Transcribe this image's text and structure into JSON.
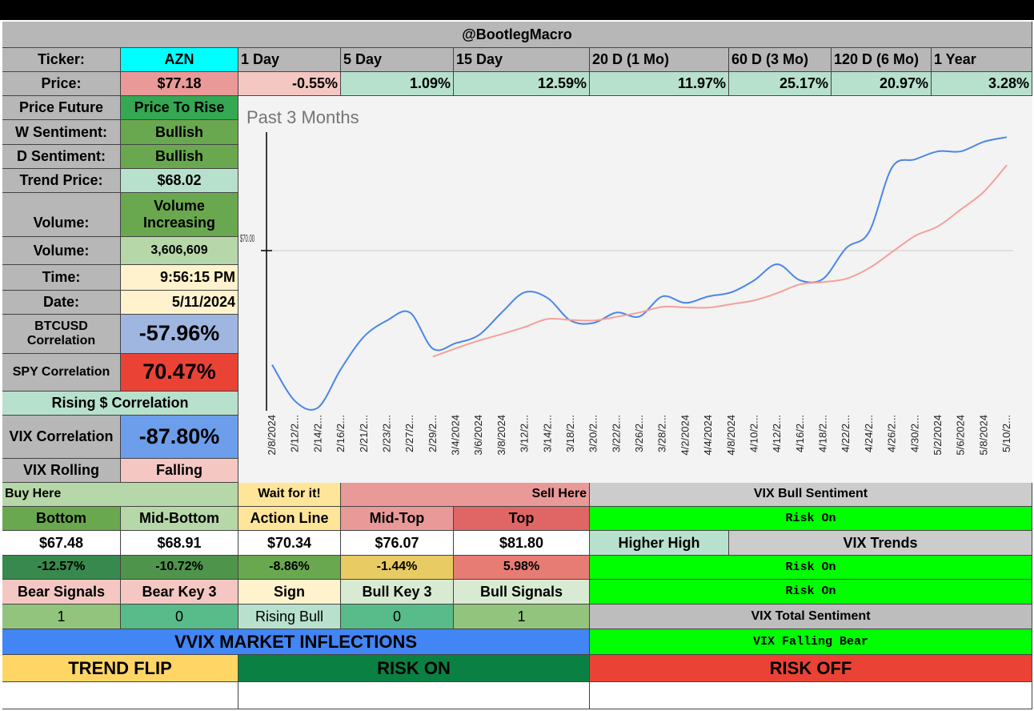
{
  "header": {
    "title": "@BootlegMacro"
  },
  "ticker": {
    "label": "Ticker:",
    "value": "AZN"
  },
  "price": {
    "label": "Price:",
    "value": "$77.18"
  },
  "periods": [
    {
      "label": "1 Day",
      "change": "-0.55%"
    },
    {
      "label": "5 Day",
      "change": "1.09%"
    },
    {
      "label": "15 Day",
      "change": "12.59%"
    },
    {
      "label": "20 D (1 Mo)",
      "change": "11.97%"
    },
    {
      "label": "60 D (3 Mo)",
      "change": "25.17%"
    },
    {
      "label": "120 D (6 Mo)",
      "change": "20.97%"
    },
    {
      "label": "1 Year",
      "change": "3.28%"
    }
  ],
  "left_panel": {
    "price_future": {
      "label": "Price Future",
      "value": "Price To Rise"
    },
    "w_sentiment": {
      "label": "W Sentiment:",
      "value": "Bullish"
    },
    "d_sentiment": {
      "label": "D Sentiment:",
      "value": "Bullish"
    },
    "trend_price": {
      "label": "Trend Price:",
      "value": "$68.02"
    },
    "volume_trend": {
      "label": "Volume:",
      "value": "Volume Increasing"
    },
    "volume": {
      "label": "Volume:",
      "value": "3,606,609"
    },
    "time": {
      "label": "Time:",
      "value": "9:56:15 PM"
    },
    "date": {
      "label": "Date:",
      "value": "5/11/2024"
    },
    "btc_corr": {
      "label": "BTCUSD Correlation",
      "value": "-57.96%"
    },
    "spy_corr": {
      "label": "SPY Correlation",
      "value": "70.47%"
    },
    "rising_corr": {
      "label": "Rising $ Correlation"
    },
    "vix_corr": {
      "label": "VIX Correlation",
      "value": "-87.80%"
    },
    "vix_rolling": {
      "label": "VIX Rolling",
      "value": "Falling"
    }
  },
  "chart_data": {
    "type": "line",
    "title": "Past 3 Months",
    "ytick_label": "$70.00",
    "ylim": [
      60,
      77.5
    ],
    "x": [
      "2/8/2024",
      "2/12/2...",
      "2/14/2...",
      "2/16/2...",
      "2/21/2...",
      "2/23/2...",
      "2/27/2...",
      "2/29/2...",
      "3/4/2024",
      "3/6/2024",
      "3/8/2024",
      "3/12/2...",
      "3/14/2...",
      "3/18/2...",
      "3/20/2...",
      "3/22/2...",
      "3/26/2...",
      "3/28/2...",
      "4/2/2024",
      "4/4/2024",
      "4/8/2024",
      "4/10/2...",
      "4/12/2...",
      "4/16/2...",
      "4/18/2...",
      "4/22/2...",
      "4/24/2...",
      "4/26/2...",
      "4/30/2...",
      "5/2/2024",
      "5/6/2024",
      "5/8/2024",
      "5/10/2..."
    ],
    "series": [
      {
        "color": "#4a86e8",
        "values": [
          62.76,
          60.46,
          60.05,
          62.5,
          64.54,
          65.56,
          66.07,
          63.78,
          64.13,
          64.64,
          66.07,
          67.35,
          66.99,
          65.56,
          65.41,
          66.07,
          65.82,
          67.09,
          66.68,
          67.09,
          67.35,
          68.11,
          69.13,
          68.11,
          68.21,
          70.15,
          71.17,
          75.26,
          75.77,
          76.28,
          76.28,
          76.89,
          77.18
        ]
      },
      {
        "color": "#f4a09a",
        "values": [
          null,
          null,
          null,
          null,
          null,
          null,
          null,
          63.27,
          63.8,
          64.29,
          64.7,
          65.15,
          65.66,
          65.6,
          65.56,
          65.8,
          66.07,
          66.43,
          66.4,
          66.38,
          66.6,
          66.84,
          67.3,
          67.86,
          68.0,
          68.21,
          68.88,
          69.9,
          70.92,
          71.53,
          72.6,
          73.72,
          75.41
        ]
      }
    ],
    "grid": false
  },
  "levels": {
    "buy_here": "Buy Here",
    "wait": "Wait for it!",
    "sell_here": "Sell Here",
    "headers": [
      "Bottom",
      "Mid-Bottom",
      "Action Line",
      "Mid-Top",
      "Top"
    ],
    "prices": [
      "$67.48",
      "$68.91",
      "$70.34",
      "$76.07",
      "$81.80"
    ],
    "pcts": [
      "-12.57%",
      "-10.72%",
      "-8.86%",
      "-1.44%",
      "5.98%"
    ],
    "signal_headers": [
      "Bear Signals",
      "Bear Key 3",
      "Sign",
      "Bull Key 3",
      "Bull Signals"
    ],
    "signal_values": [
      "1",
      "0",
      "Rising Bull",
      "0",
      "1"
    ]
  },
  "vix": {
    "bull_sentiment_label": "VIX Bull Sentiment",
    "bull_sentiment": "Risk On",
    "higher_high": "Higher High",
    "trends_label": "VIX Trends",
    "trend1": "Risk On",
    "trend2": "Risk On",
    "total_label": "VIX Total Sentiment",
    "total": "VIX Falling Bear"
  },
  "vvix": {
    "title": "VVIX MARKET INFLECTIONS",
    "trend_flip": "TREND FLIP",
    "risk_on": "RISK ON",
    "risk_off": "RISK OFF"
  },
  "colors": {
    "cyan": "#00ffff",
    "bright_green": "#00ff00",
    "blue": "#4285f4",
    "red": "#ea4335",
    "dark_green": "#0b8043",
    "yellow": "#ffd666"
  }
}
